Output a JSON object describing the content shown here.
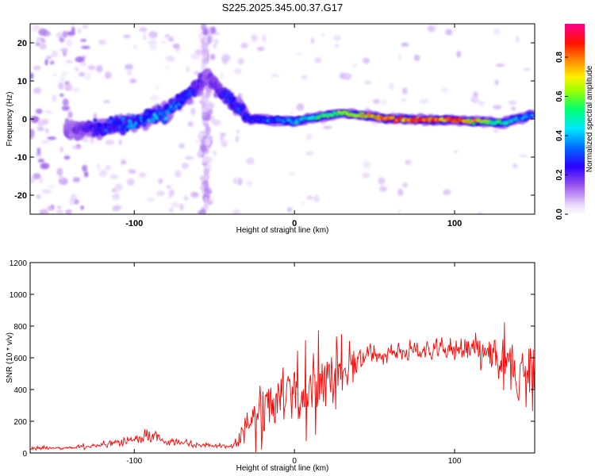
{
  "figure": {
    "title": "S225.2025.345.00.37.G17"
  },
  "chart_data": [
    {
      "type": "heatmap",
      "xlabel": "Height of straight line (km)",
      "ylabel": "Frequency (Hz)",
      "xlim": [
        -165,
        150
      ],
      "ylim": [
        -25,
        25
      ],
      "xticks": [
        -100,
        0,
        100
      ],
      "yticks": [
        -20,
        -10,
        0,
        10,
        20
      ],
      "colorbar": {
        "label": "Normalized spectral amplitude",
        "range": [
          0.0,
          0.97
        ],
        "ticks": [
          0.0,
          0.2,
          0.4,
          0.6,
          0.8
        ],
        "colormap": [
          "#ffffff",
          "#d7b8f8",
          "#7d33e6",
          "#1400ff",
          "#00e8ff",
          "#00ff40",
          "#e8ff00",
          "#ff7a00",
          "#ff0010",
          "#ff0090"
        ]
      },
      "ridge": {
        "description_points": [
          {
            "x": -140,
            "y": -3,
            "amp": 0.2
          },
          {
            "x": -120,
            "y": -2,
            "amp": 0.35
          },
          {
            "x": -100,
            "y": -1,
            "amp": 0.4
          },
          {
            "x": -80,
            "y": 2,
            "amp": 0.45
          },
          {
            "x": -65,
            "y": 7,
            "amp": 0.35
          },
          {
            "x": -55,
            "y": 11,
            "amp": 0.2
          },
          {
            "x": -40,
            "y": 5,
            "amp": 0.35
          },
          {
            "x": -28,
            "y": 0,
            "amp": 0.35
          },
          {
            "x": 0,
            "y": -0.5,
            "amp": 0.45
          },
          {
            "x": 30,
            "y": 1.5,
            "amp": 0.65
          },
          {
            "x": 60,
            "y": 0,
            "amp": 0.85
          },
          {
            "x": 100,
            "y": -0.3,
            "amp": 0.9
          },
          {
            "x": 130,
            "y": -1,
            "amp": 0.5
          },
          {
            "x": 148,
            "y": 1,
            "amp": 0.4
          }
        ]
      }
    },
    {
      "type": "line",
      "xlabel": "Height of straight line (km)",
      "ylabel": "SNR (10 * v/v)",
      "xlim": [
        -165,
        150
      ],
      "ylim": [
        0,
        1200
      ],
      "xticks": [
        -100,
        0,
        100
      ],
      "yticks": [
        0,
        200,
        400,
        600,
        800,
        1000,
        1200
      ],
      "series": [
        {
          "color": "#ff0000",
          "envelope": {
            "x": [
              -165,
              -140,
              -120,
              -100,
              -90,
              -80,
              -60,
              -40,
              -35,
              -30,
              -20,
              -10,
              0,
              10,
              20,
              30,
              40,
              50,
              70,
              90,
              110,
              120,
              130,
              140,
              150
            ],
            "base": [
              30,
              30,
              50,
              80,
              110,
              70,
              50,
              40,
              60,
              200,
              260,
              330,
              380,
              430,
              470,
              520,
              600,
              620,
              640,
              650,
              640,
              620,
              560,
              500,
              480
            ],
            "amp": [
              15,
              15,
              25,
              40,
              60,
              35,
              25,
              15,
              80,
              180,
              230,
              270,
              300,
              300,
              300,
              280,
              120,
              80,
              80,
              90,
              110,
              150,
              230,
              330,
              300
            ]
          }
        }
      ]
    }
  ]
}
